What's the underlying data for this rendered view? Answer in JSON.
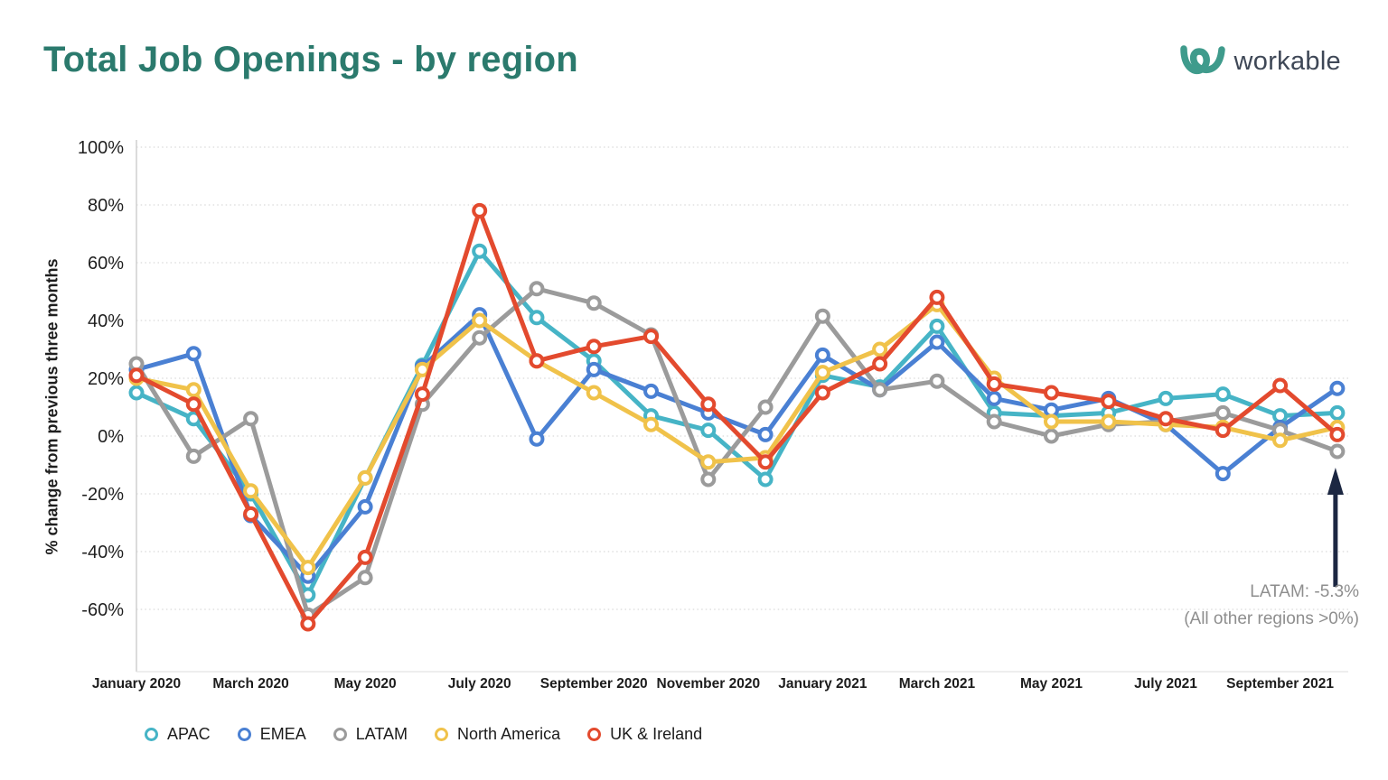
{
  "header": {
    "title": "Total Job Openings - by region",
    "logo_text": "workable"
  },
  "chart_data": {
    "type": "line",
    "x": [
      "Jan 2020",
      "Feb 2020",
      "Mar 2020",
      "Apr 2020",
      "May 2020",
      "Jun 2020",
      "Jul 2020",
      "Aug 2020",
      "Sep 2020",
      "Oct 2020",
      "Nov 2020",
      "Dec 2020",
      "Jan 2021",
      "Feb 2021",
      "Mar 2021",
      "Apr 2021",
      "May 2021",
      "Jun 2021",
      "Jul 2021",
      "Aug 2021",
      "Sep 2021",
      "Oct 2021"
    ],
    "x_tick_labels": [
      "January 2020",
      "March 2020",
      "May 2020",
      "July 2020",
      "September 2020",
      "November 2020",
      "January 2021",
      "March 2021",
      "May 2021",
      "July 2021",
      "September 2021"
    ],
    "ylabel": "% change from previous three months",
    "ylim": [
      -70,
      100
    ],
    "yticks": [
      100,
      80,
      60,
      40,
      20,
      0,
      -20,
      -40,
      -60
    ],
    "ytick_suffix": "%",
    "grid": "dotted-horizontal",
    "legend_position": "bottom-left",
    "marker_style": "open-circle",
    "series": [
      {
        "name": "APAC",
        "color": "#46b4c6",
        "values": [
          15,
          6,
          -20,
          -55,
          -14.5,
          24.5,
          64,
          41,
          26,
          7,
          2,
          -15,
          21,
          17,
          38,
          8,
          7,
          8,
          13,
          14.5,
          7,
          8
        ]
      },
      {
        "name": "EMEA",
        "color": "#4a80d3",
        "values": [
          23,
          28.5,
          -27.5,
          -48.5,
          -24.5,
          24,
          42,
          -1,
          23,
          15.5,
          8,
          0.5,
          28,
          16,
          32.5,
          13,
          9,
          13,
          4,
          -13,
          3,
          16.5
        ]
      },
      {
        "name": "LATAM",
        "color": "#9b9b9b",
        "values": [
          25,
          -7,
          6,
          -62,
          -49,
          11,
          34,
          51,
          46,
          35,
          -15,
          10,
          41.5,
          16,
          19,
          5,
          0,
          4,
          5,
          8,
          2,
          -5.3
        ]
      },
      {
        "name": "North America",
        "color": "#f0c24a",
        "values": [
          20,
          16,
          -19,
          -45.5,
          -14.5,
          23,
          40,
          26,
          15,
          4,
          -9,
          -7.5,
          22,
          30,
          45.5,
          20,
          5,
          5,
          4,
          3,
          -1.5,
          3
        ]
      },
      {
        "name": "UK & Ireland",
        "color": "#e34a2e",
        "values": [
          21,
          11,
          -27,
          -65,
          -42,
          14.5,
          78,
          26,
          31,
          34.5,
          11,
          -9,
          15,
          25,
          48,
          18,
          15,
          12,
          6,
          2,
          17.5,
          0.5
        ]
      }
    ],
    "annotation": {
      "line1": "LATAM: -5.3%",
      "line2": "(All other regions >0%)",
      "target_series": "LATAM",
      "target_x": "Oct 2021",
      "arrow_color": "#1c2742",
      "text_color": "#8e8e8e"
    }
  }
}
